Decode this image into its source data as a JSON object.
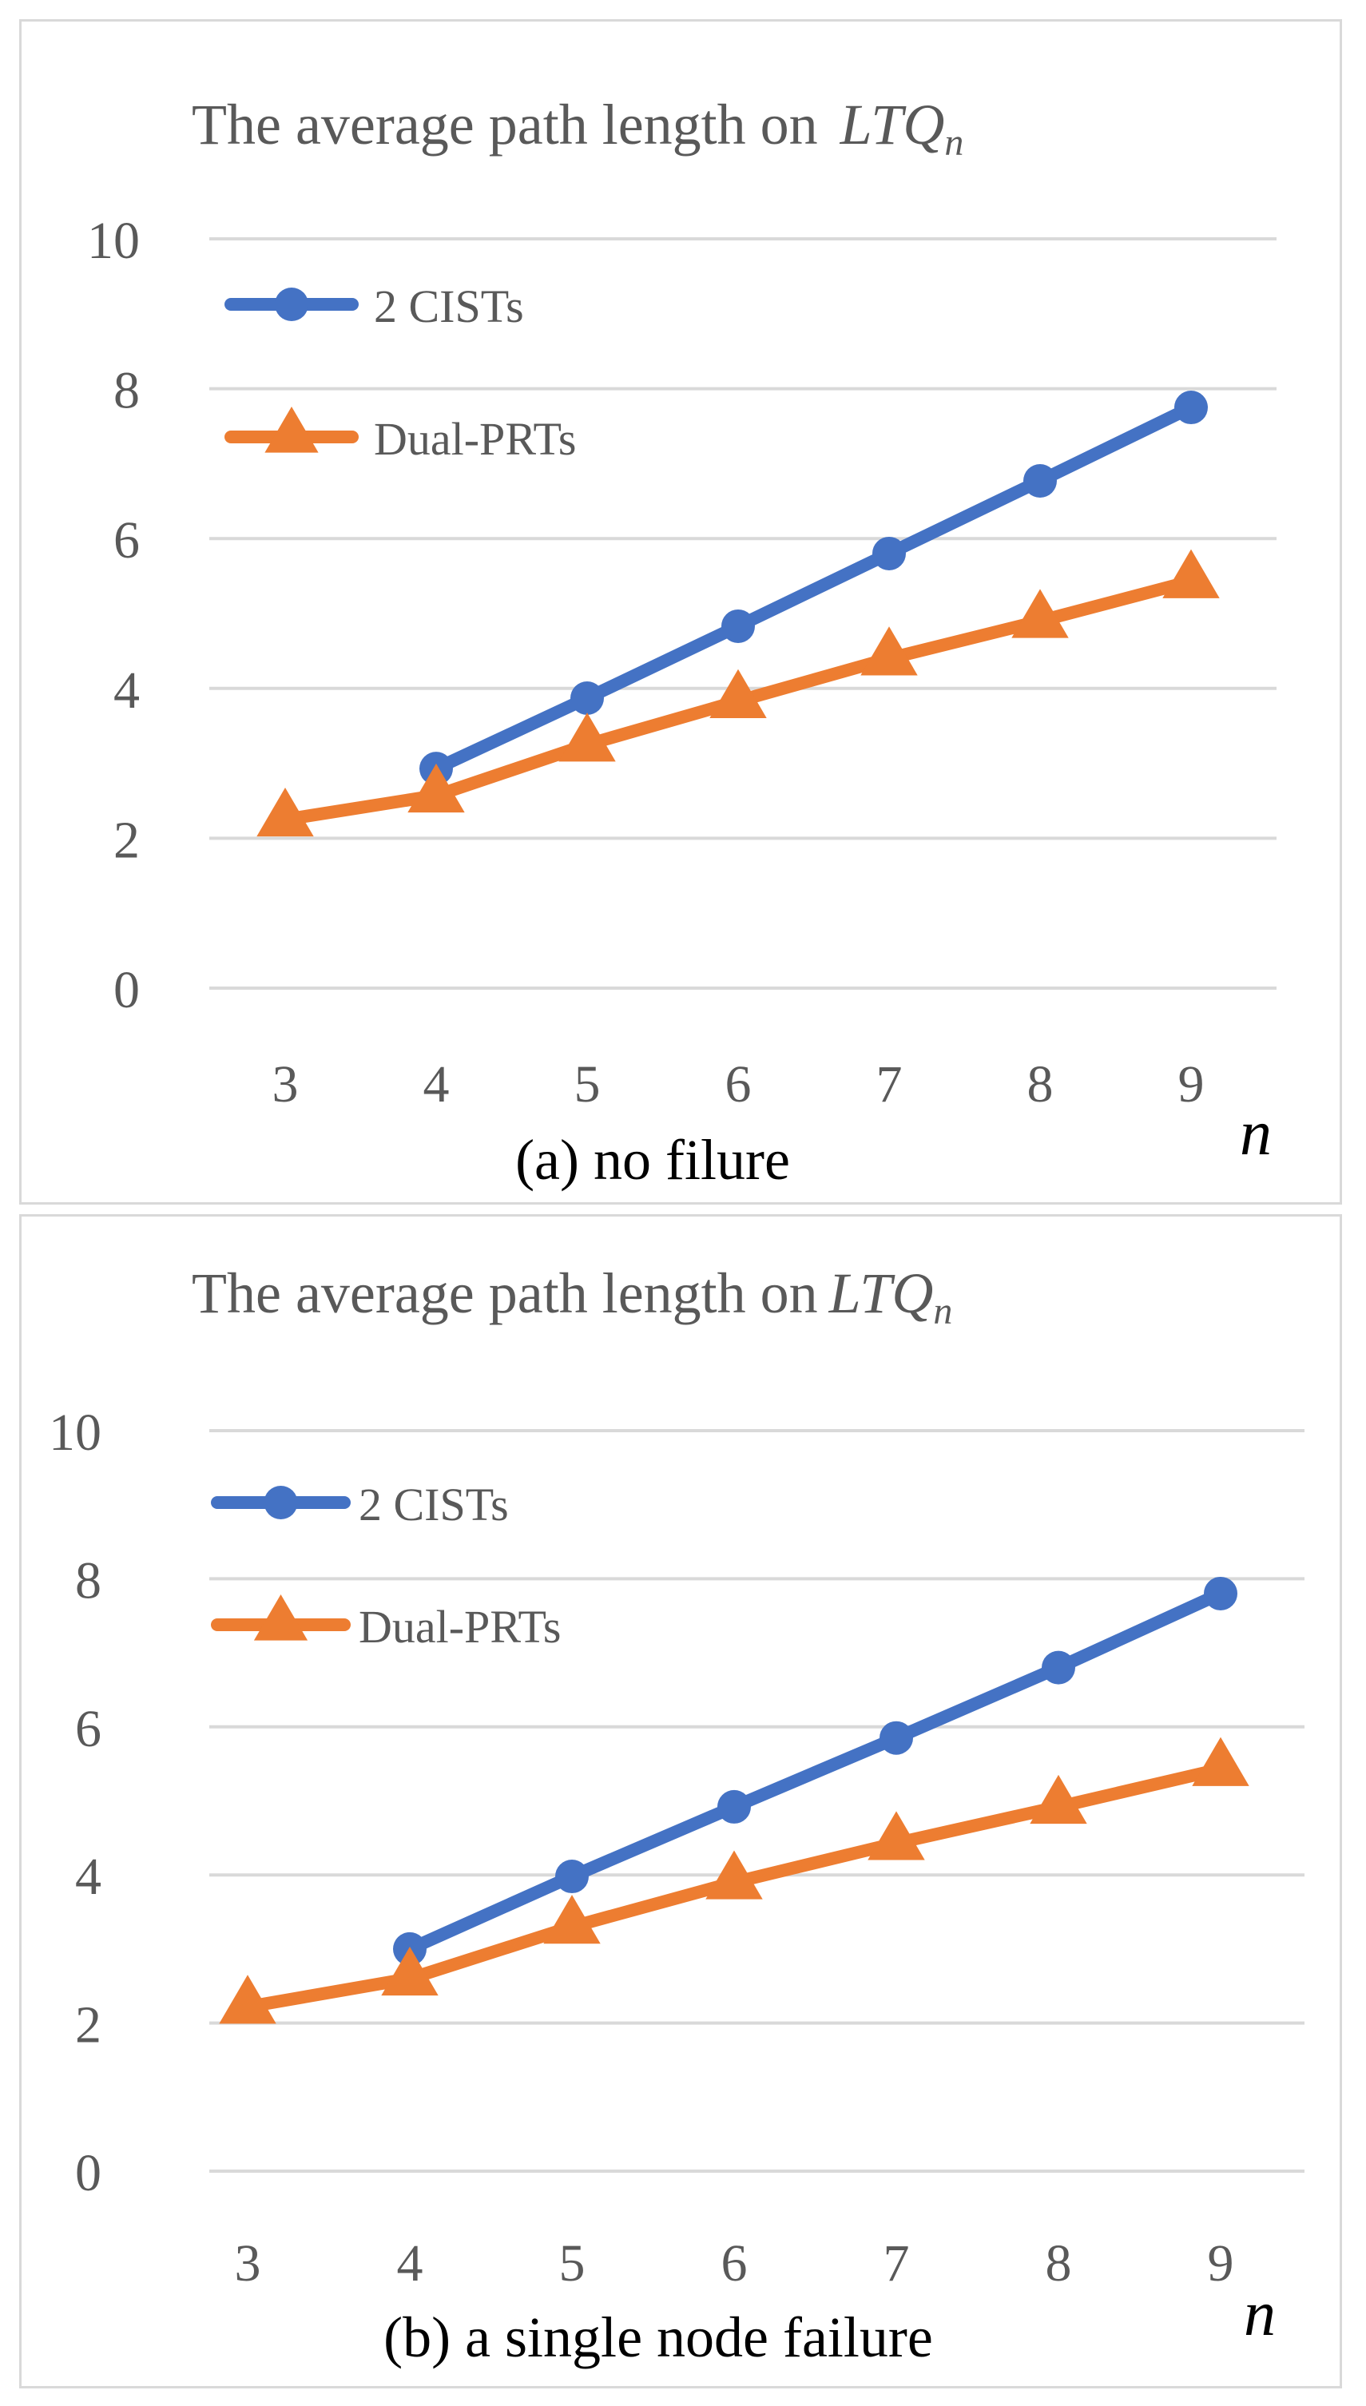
{
  "chart_data": [
    {
      "type": "line",
      "title": "The average path length on",
      "title_italic": "LTQ",
      "title_subscript": "n",
      "caption": "(a) no filure",
      "xlabel": "n",
      "ylabel": "",
      "categories": [
        "3",
        "4",
        "5",
        "6",
        "7",
        "8",
        "9"
      ],
      "yticks": [
        "0",
        "2",
        "4",
        "6",
        "8",
        "10"
      ],
      "ylim": [
        0,
        10
      ],
      "grid": true,
      "legend_position": "top-left",
      "series": [
        {
          "name": "2 CISTs",
          "color": "#4472c4",
          "marker": "circle",
          "values": [
            null,
            2.93,
            3.87,
            4.83,
            5.8,
            6.77,
            7.75
          ]
        },
        {
          "name": "Dual-PRTs",
          "color": "#ed7d31",
          "marker": "triangle",
          "values": [
            2.25,
            2.57,
            3.25,
            3.83,
            4.4,
            4.9,
            5.43
          ]
        }
      ]
    },
    {
      "type": "line",
      "title": "The average path length on",
      "title_italic": "LTQ",
      "title_subscript": "n",
      "caption": "(b) a single node failure",
      "xlabel": "n",
      "ylabel": "",
      "categories": [
        "3",
        "4",
        "5",
        "6",
        "7",
        "8",
        "9"
      ],
      "yticks": [
        "0",
        "2",
        "4",
        "6",
        "8",
        "10"
      ],
      "ylim": [
        0,
        10
      ],
      "grid": true,
      "legend_position": "top-left",
      "series": [
        {
          "name": "2 CISTs",
          "color": "#4472c4",
          "marker": "circle",
          "values": [
            null,
            3.0,
            3.98,
            4.92,
            5.85,
            6.8,
            7.8
          ]
        },
        {
          "name": "Dual-PRTs",
          "color": "#ed7d31",
          "marker": "triangle",
          "values": [
            2.22,
            2.6,
            3.3,
            3.9,
            4.43,
            4.92,
            5.43
          ]
        }
      ]
    }
  ]
}
